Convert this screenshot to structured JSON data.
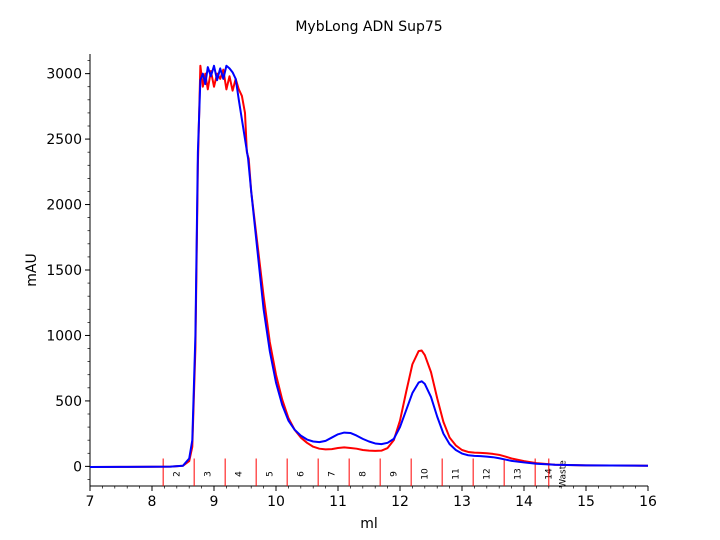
{
  "chart_data": {
    "type": "line",
    "title": "MybLong ADN Sup75",
    "xlabel": "ml",
    "ylabel": "mAU",
    "xlim": [
      7,
      16
    ],
    "ylim": [
      -150,
      3150
    ],
    "x_ticks": [
      7,
      8,
      9,
      10,
      11,
      12,
      13,
      14,
      15,
      16
    ],
    "y_ticks": [
      0,
      500,
      1000,
      1500,
      2000,
      2500,
      3000
    ],
    "grid": false,
    "legend": "none",
    "series": [
      {
        "color": "#ff0000",
        "points": [
          [
            7.0,
            -5
          ],
          [
            7.5,
            -4
          ],
          [
            8.0,
            -3
          ],
          [
            8.3,
            -2
          ],
          [
            8.5,
            5
          ],
          [
            8.6,
            40
          ],
          [
            8.65,
            150
          ],
          [
            8.7,
            900
          ],
          [
            8.74,
            2300
          ],
          [
            8.78,
            3060
          ],
          [
            8.82,
            2900
          ],
          [
            8.86,
            3000
          ],
          [
            8.9,
            2880
          ],
          [
            8.95,
            3020
          ],
          [
            9.0,
            2900
          ],
          [
            9.05,
            3000
          ],
          [
            9.1,
            2960
          ],
          [
            9.15,
            3030
          ],
          [
            9.2,
            2880
          ],
          [
            9.25,
            2980
          ],
          [
            9.3,
            2870
          ],
          [
            9.35,
            2960
          ],
          [
            9.4,
            2880
          ],
          [
            9.45,
            2830
          ],
          [
            9.5,
            2700
          ],
          [
            9.53,
            2400
          ],
          [
            9.56,
            2350
          ],
          [
            9.6,
            2100
          ],
          [
            9.7,
            1700
          ],
          [
            9.8,
            1300
          ],
          [
            9.9,
            950
          ],
          [
            10.0,
            700
          ],
          [
            10.1,
            510
          ],
          [
            10.2,
            370
          ],
          [
            10.3,
            280
          ],
          [
            10.4,
            220
          ],
          [
            10.5,
            180
          ],
          [
            10.6,
            150
          ],
          [
            10.7,
            135
          ],
          [
            10.8,
            130
          ],
          [
            10.9,
            132
          ],
          [
            11.0,
            140
          ],
          [
            11.1,
            145
          ],
          [
            11.2,
            140
          ],
          [
            11.3,
            135
          ],
          [
            11.4,
            125
          ],
          [
            11.5,
            120
          ],
          [
            11.6,
            118
          ],
          [
            11.7,
            120
          ],
          [
            11.8,
            140
          ],
          [
            11.9,
            200
          ],
          [
            12.0,
            350
          ],
          [
            12.1,
            570
          ],
          [
            12.2,
            780
          ],
          [
            12.3,
            880
          ],
          [
            12.35,
            885
          ],
          [
            12.4,
            850
          ],
          [
            12.5,
            720
          ],
          [
            12.6,
            520
          ],
          [
            12.7,
            340
          ],
          [
            12.8,
            220
          ],
          [
            12.9,
            160
          ],
          [
            13.0,
            125
          ],
          [
            13.1,
            110
          ],
          [
            13.2,
            105
          ],
          [
            13.3,
            103
          ],
          [
            13.4,
            100
          ],
          [
            13.5,
            95
          ],
          [
            13.6,
            88
          ],
          [
            13.7,
            75
          ],
          [
            13.8,
            60
          ],
          [
            14.0,
            40
          ],
          [
            14.2,
            25
          ],
          [
            14.5,
            12
          ],
          [
            15.0,
            8
          ],
          [
            16.0,
            5
          ]
        ]
      },
      {
        "color": "#0000ff",
        "points": [
          [
            7.0,
            -5
          ],
          [
            7.5,
            -4
          ],
          [
            8.0,
            -3
          ],
          [
            8.3,
            -2
          ],
          [
            8.5,
            5
          ],
          [
            8.6,
            60
          ],
          [
            8.65,
            200
          ],
          [
            8.7,
            1000
          ],
          [
            8.74,
            2400
          ],
          [
            8.78,
            2950
          ],
          [
            8.82,
            3000
          ],
          [
            8.86,
            2920
          ],
          [
            8.9,
            3050
          ],
          [
            8.95,
            2980
          ],
          [
            9.0,
            3060
          ],
          [
            9.05,
            2950
          ],
          [
            9.1,
            3040
          ],
          [
            9.15,
            2960
          ],
          [
            9.2,
            3060
          ],
          [
            9.25,
            3040
          ],
          [
            9.3,
            3010
          ],
          [
            9.35,
            2960
          ],
          [
            9.4,
            2800
          ],
          [
            9.45,
            2650
          ],
          [
            9.5,
            2500
          ],
          [
            9.55,
            2350
          ],
          [
            9.6,
            2100
          ],
          [
            9.7,
            1650
          ],
          [
            9.8,
            1200
          ],
          [
            9.9,
            880
          ],
          [
            10.0,
            640
          ],
          [
            10.1,
            470
          ],
          [
            10.2,
            350
          ],
          [
            10.3,
            280
          ],
          [
            10.4,
            235
          ],
          [
            10.5,
            205
          ],
          [
            10.6,
            190
          ],
          [
            10.7,
            185
          ],
          [
            10.8,
            195
          ],
          [
            10.9,
            220
          ],
          [
            11.0,
            245
          ],
          [
            11.1,
            258
          ],
          [
            11.2,
            255
          ],
          [
            11.3,
            235
          ],
          [
            11.4,
            210
          ],
          [
            11.5,
            190
          ],
          [
            11.6,
            175
          ],
          [
            11.7,
            170
          ],
          [
            11.8,
            180
          ],
          [
            11.9,
            210
          ],
          [
            12.0,
            300
          ],
          [
            12.1,
            430
          ],
          [
            12.2,
            560
          ],
          [
            12.3,
            640
          ],
          [
            12.35,
            650
          ],
          [
            12.4,
            630
          ],
          [
            12.5,
            530
          ],
          [
            12.6,
            380
          ],
          [
            12.7,
            250
          ],
          [
            12.8,
            170
          ],
          [
            12.9,
            125
          ],
          [
            13.0,
            98
          ],
          [
            13.1,
            85
          ],
          [
            13.2,
            80
          ],
          [
            13.3,
            78
          ],
          [
            13.4,
            74
          ],
          [
            13.5,
            70
          ],
          [
            13.6,
            62
          ],
          [
            13.7,
            52
          ],
          [
            13.8,
            42
          ],
          [
            14.0,
            30
          ],
          [
            14.2,
            20
          ],
          [
            14.5,
            12
          ],
          [
            15.0,
            8
          ],
          [
            16.0,
            5
          ]
        ]
      }
    ],
    "fractions": {
      "color": "#ff0000",
      "marker_ml": [
        8.18,
        8.68,
        9.18,
        9.68,
        10.18,
        10.68,
        11.18,
        11.68,
        12.18,
        12.68,
        13.18,
        13.68,
        14.18,
        14.4
      ],
      "labels": [
        "2",
        "3",
        "4",
        "5",
        "6",
        "7",
        "8",
        "9",
        "10",
        "11",
        "12",
        "13",
        "14",
        "Waste"
      ]
    }
  }
}
